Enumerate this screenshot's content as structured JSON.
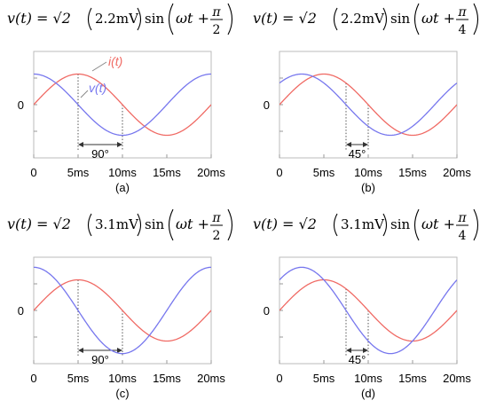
{
  "chart_data": [
    {
      "type": "line",
      "panel_label": "(a)",
      "equation": {
        "lhs": "v(t) = √2",
        "amplitude": "2.2mV",
        "func": "sin",
        "arg": "ωt +",
        "phase_num": "π",
        "phase_den": "2"
      },
      "xlabel": "",
      "ylabel": "",
      "xlim": [
        0,
        20
      ],
      "ylim": [
        -1.6,
        1.6
      ],
      "x_ticks": [
        0,
        5,
        10,
        15,
        20
      ],
      "x_tick_labels": [
        "0",
        "5ms",
        "10ms",
        "15ms",
        "20ms"
      ],
      "y_tick_labels": [
        "0"
      ],
      "grid": false,
      "series": [
        {
          "name": "i(t)",
          "color": "#f06a64",
          "amplitude": 1.0,
          "phase_deg": 0,
          "period_ms": 20
        },
        {
          "name": "v(t)",
          "color": "#7777ee",
          "amplitude": 1.0,
          "phase_deg": 90,
          "period_ms": 20
        }
      ],
      "annotation": {
        "text": "90°",
        "x_start": 5,
        "x_end": 10
      }
    },
    {
      "type": "line",
      "panel_label": "(b)",
      "equation": {
        "lhs": "v(t) = √2",
        "amplitude": "2.2mV",
        "func": "sin",
        "arg": "ωt +",
        "phase_num": "π",
        "phase_den": "4"
      },
      "xlabel": "",
      "ylabel": "",
      "xlim": [
        0,
        20
      ],
      "ylim": [
        -1.6,
        1.6
      ],
      "x_ticks": [
        0,
        5,
        10,
        15,
        20
      ],
      "x_tick_labels": [
        "0",
        "5ms",
        "10ms",
        "15ms",
        "20ms"
      ],
      "y_tick_labels": [
        "0"
      ],
      "grid": false,
      "series": [
        {
          "color": "#f06a64",
          "amplitude": 1.0,
          "phase_deg": 0,
          "period_ms": 20
        },
        {
          "color": "#7777ee",
          "amplitude": 1.0,
          "phase_deg": 45,
          "period_ms": 20
        }
      ],
      "annotation": {
        "text": "45°",
        "x_start": 7.5,
        "x_end": 10
      }
    },
    {
      "type": "line",
      "panel_label": "(c)",
      "equation": {
        "lhs": "v(t) = √2",
        "amplitude": "3.1mV",
        "func": "sin",
        "arg": "ωt +",
        "phase_num": "π",
        "phase_den": "2"
      },
      "xlabel": "",
      "ylabel": "",
      "xlim": [
        0,
        20
      ],
      "ylim": [
        -1.6,
        1.6
      ],
      "x_ticks": [
        0,
        5,
        10,
        15,
        20
      ],
      "x_tick_labels": [
        "0",
        "5ms",
        "10ms",
        "15ms",
        "20ms"
      ],
      "y_tick_labels": [
        "0"
      ],
      "grid": false,
      "series": [
        {
          "color": "#f06a64",
          "amplitude": 1.0,
          "phase_deg": 0,
          "period_ms": 20
        },
        {
          "color": "#7777ee",
          "amplitude": 1.41,
          "phase_deg": 90,
          "period_ms": 20
        }
      ],
      "annotation": {
        "text": "90°",
        "x_start": 5,
        "x_end": 10
      }
    },
    {
      "type": "line",
      "panel_label": "(d)",
      "equation": {
        "lhs": "v(t) = √2",
        "amplitude": "3.1mV",
        "func": "sin",
        "arg": "ωt +",
        "phase_num": "π",
        "phase_den": "4"
      },
      "xlabel": "",
      "ylabel": "",
      "xlim": [
        0,
        20
      ],
      "ylim": [
        -1.6,
        1.6
      ],
      "x_ticks": [
        0,
        5,
        10,
        15,
        20
      ],
      "x_tick_labels": [
        "0",
        "5ms",
        "10ms",
        "15ms",
        "20ms"
      ],
      "y_tick_labels": [
        "0"
      ],
      "grid": false,
      "series": [
        {
          "color": "#f06a64",
          "amplitude": 1.0,
          "phase_deg": 0,
          "period_ms": 20
        },
        {
          "color": "#7777ee",
          "amplitude": 1.41,
          "phase_deg": 45,
          "period_ms": 20
        }
      ],
      "annotation": {
        "text": "45°",
        "x_start": 7.5,
        "x_end": 10
      }
    }
  ],
  "colors": {
    "current": "#f06a64",
    "voltage": "#7777ee",
    "frame": "#bbbbbb",
    "annotation": "#333333"
  }
}
